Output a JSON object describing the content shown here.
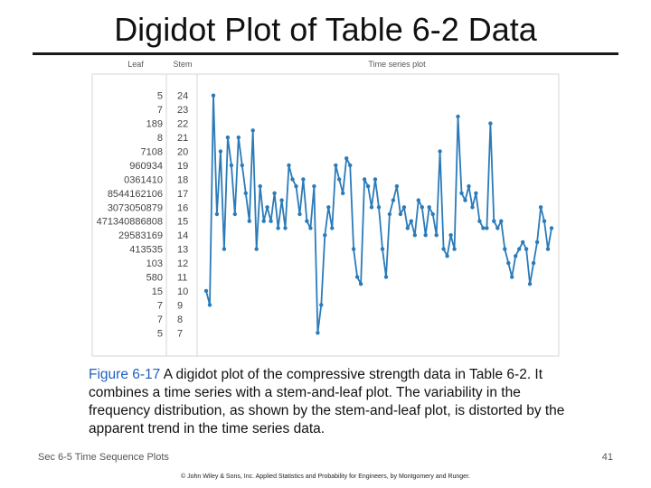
{
  "slide": {
    "title": "Digidot Plot of Table 6-2 Data",
    "caption_label": "Figure 6-17",
    "caption_text": "A digidot plot of the compressive strength data in Table 6-2. It combines a time series with a stem-and-leaf plot. The variability in the frequency distribution, as shown by the stem-and-leaf plot, is distorted by the apparent trend in the time series data.",
    "footer_left": "Sec 6-5 Time Sequence Plots",
    "page_number": "41",
    "copyright": "© John Wiley & Sons, Inc. Applied Statistics and Probability for Engineers, by Montgomery and Runger."
  },
  "colors": {
    "series": "#2b7bb9",
    "panel_border": "#d0d0d0",
    "text": "#444444"
  },
  "chart_data": {
    "type": "line",
    "headers": {
      "leaf": "Leaf",
      "stem": "Stem",
      "series": "Time series plot"
    },
    "stems": [
      "24",
      "23",
      "22",
      "21",
      "20",
      "19",
      "18",
      "17",
      "16",
      "15",
      "14",
      "13",
      "12",
      "11",
      "10",
      "9",
      "8",
      "7"
    ],
    "leaves": [
      "5",
      "7",
      "189",
      "8",
      "7108",
      "960934",
      "0361410",
      "8544162106",
      "3073050879",
      "471340886808",
      "29583169",
      "413535",
      "103",
      "580",
      "15",
      "7",
      "7",
      "5"
    ],
    "ylim": [
      6.5,
      24.5
    ],
    "values": [
      10,
      9,
      24,
      15.5,
      20,
      13,
      21,
      19,
      15.5,
      21,
      19,
      17,
      15,
      21.5,
      13,
      17.5,
      15,
      16,
      15,
      17,
      14.5,
      16.5,
      14.5,
      19,
      18,
      17.5,
      15.5,
      18,
      15,
      14.5,
      17.5,
      7,
      9,
      14,
      16,
      14.5,
      19,
      18,
      17,
      19.5,
      19,
      13,
      11,
      10.5,
      18,
      17.5,
      16,
      18,
      16,
      13,
      11,
      15.5,
      16.5,
      17.5,
      15.5,
      16,
      14.5,
      15,
      14,
      16.5,
      16,
      14,
      16,
      15.5,
      14,
      20,
      13,
      12.5,
      14,
      13,
      22.5,
      17,
      16.5,
      17.5,
      16,
      17,
      15,
      14.5,
      14.5,
      22,
      15,
      14.5,
      15,
      13,
      12,
      11,
      12.5,
      13,
      13.5,
      13,
      10.5,
      12,
      13.5,
      16,
      15,
      13,
      14.5
    ]
  }
}
